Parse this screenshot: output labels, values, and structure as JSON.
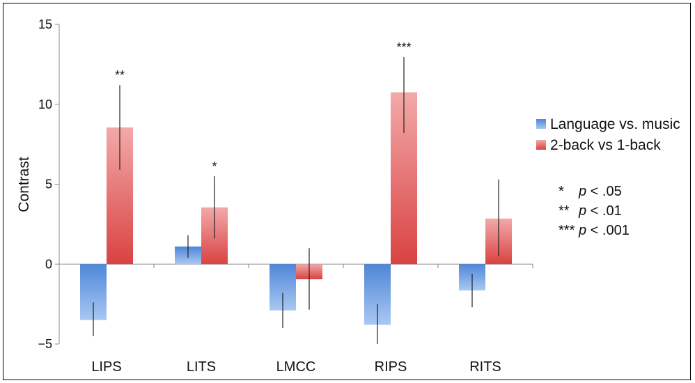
{
  "chart_data": {
    "type": "bar",
    "title": "",
    "xlabel": "",
    "ylabel": "Contrast",
    "ylim": [
      -5,
      15
    ],
    "yticks": [
      -5,
      0,
      5,
      10,
      15
    ],
    "categories": [
      "LIPS",
      "LITS",
      "LMCC",
      "RIPS",
      "RITS"
    ],
    "series": [
      {
        "name": "Language vs. music",
        "color": "#5b8fd9",
        "values": [
          -3.5,
          1.1,
          -2.9,
          -3.8,
          -1.65
        ],
        "error_low": [
          -4.5,
          0.4,
          -4.0,
          -5.0,
          -2.7
        ],
        "error_high": [
          -2.4,
          1.8,
          -1.8,
          -2.5,
          -0.6
        ]
      },
      {
        "name": "2-back vs 1-back",
        "color": "#dd4b4b",
        "values": [
          8.55,
          3.55,
          -0.95,
          10.75,
          2.85
        ],
        "error_low": [
          5.9,
          1.6,
          -2.85,
          8.2,
          0.5
        ],
        "error_high": [
          11.2,
          5.5,
          1.0,
          12.95,
          5.3
        ]
      }
    ],
    "annotations": [
      {
        "category": "LIPS",
        "series": 1,
        "text": "**"
      },
      {
        "category": "LITS",
        "series": 1,
        "text": "*"
      },
      {
        "category": "RIPS",
        "series": 1,
        "text": "***"
      }
    ],
    "significance_key": [
      {
        "stars": "*",
        "p": "p",
        "rest": " < .05"
      },
      {
        "stars": "**",
        "p": "p",
        "rest": " < .01"
      },
      {
        "stars": "***",
        "p": "p",
        "rest": " < .001"
      }
    ],
    "legend_placement": "right",
    "grid": false
  }
}
